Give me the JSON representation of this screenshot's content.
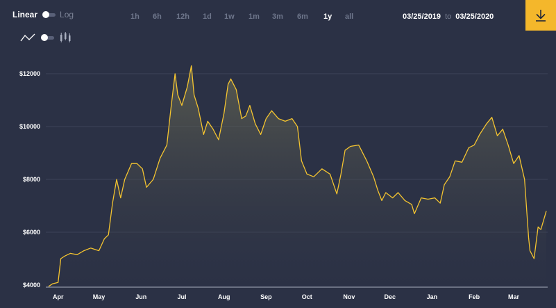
{
  "toolbar": {
    "scale_linear": "Linear",
    "scale_log": "Log",
    "ranges": [
      "1h",
      "6h",
      "12h",
      "1d",
      "1w",
      "1m",
      "3m",
      "6m",
      "1y",
      "all"
    ],
    "active_range": "1y",
    "date_from": "03/25/2019",
    "date_sep": "to",
    "date_to": "03/25/2020",
    "download_icon": "download-icon"
  },
  "chart_type_toggle": {
    "left_icon": "line-chart-icon",
    "right_icon": "candlestick-icon"
  },
  "colors": {
    "background": "#2b3145",
    "line": "#f4c430",
    "accent": "#f4b72b",
    "grid": "#3c4359"
  },
  "chart_data": {
    "type": "area",
    "ylim": [
      4000,
      12800
    ],
    "yticks": [
      "$4000",
      "$6000",
      "$8000",
      "$10000",
      "$12000"
    ],
    "ytick_values": [
      4000,
      6000,
      8000,
      10000,
      12000
    ],
    "xticks": [
      "Apr",
      "May",
      "Jun",
      "Jul",
      "Aug",
      "Sep",
      "Oct",
      "Nov",
      "Dec",
      "Jan",
      "Feb",
      "Mar"
    ],
    "x": [
      "2019-03-25",
      "2019-03-28",
      "2019-04-01",
      "2019-04-03",
      "2019-04-06",
      "2019-04-10",
      "2019-04-15",
      "2019-04-20",
      "2019-04-25",
      "2019-05-01",
      "2019-05-05",
      "2019-05-08",
      "2019-05-11",
      "2019-05-14",
      "2019-05-17",
      "2019-05-20",
      "2019-05-25",
      "2019-05-29",
      "2019-06-02",
      "2019-06-05",
      "2019-06-10",
      "2019-06-15",
      "2019-06-20",
      "2019-06-23",
      "2019-06-26",
      "2019-06-28",
      "2019-07-01",
      "2019-07-05",
      "2019-07-08",
      "2019-07-10",
      "2019-07-13",
      "2019-07-17",
      "2019-07-20",
      "2019-07-24",
      "2019-07-28",
      "2019-08-01",
      "2019-08-04",
      "2019-08-06",
      "2019-08-10",
      "2019-08-14",
      "2019-08-17",
      "2019-08-20",
      "2019-08-24",
      "2019-08-28",
      "2019-09-01",
      "2019-09-05",
      "2019-09-10",
      "2019-09-15",
      "2019-09-20",
      "2019-09-24",
      "2019-09-27",
      "2019-10-01",
      "2019-10-06",
      "2019-10-12",
      "2019-10-18",
      "2019-10-23",
      "2019-10-26",
      "2019-10-29",
      "2019-11-02",
      "2019-11-08",
      "2019-11-14",
      "2019-11-19",
      "2019-11-22",
      "2019-11-25",
      "2019-11-28",
      "2019-12-03",
      "2019-12-07",
      "2019-12-12",
      "2019-12-17",
      "2019-12-19",
      "2019-12-24",
      "2019-12-29",
      "2020-01-03",
      "2020-01-07",
      "2020-01-10",
      "2020-01-14",
      "2020-01-18",
      "2020-01-23",
      "2020-01-28",
      "2020-02-01",
      "2020-02-05",
      "2020-02-10",
      "2020-02-14",
      "2020-02-18",
      "2020-02-22",
      "2020-02-26",
      "2020-03-01",
      "2020-03-05",
      "2020-03-09",
      "2020-03-12",
      "2020-03-13",
      "2020-03-16",
      "2020-03-19",
      "2020-03-21",
      "2020-03-25"
    ],
    "series": [
      {
        "values": [
          3950,
          4050,
          4100,
          5000,
          5100,
          5200,
          5150,
          5300,
          5400,
          5300,
          5750,
          5900,
          7100,
          8000,
          7300,
          8000,
          8600,
          8600,
          8400,
          7700,
          8000,
          8800,
          9300,
          10700,
          12000,
          11200,
          10800,
          11500,
          12300,
          11200,
          10700,
          9700,
          10200,
          9900,
          9500,
          10500,
          11600,
          11800,
          11400,
          10300,
          10400,
          10800,
          10100,
          9700,
          10300,
          10600,
          10300,
          10200,
          10300,
          10000,
          8700,
          8200,
          8100,
          8400,
          8200,
          7450,
          8200,
          9100,
          9250,
          9300,
          8700,
          8100,
          7600,
          7200,
          7500,
          7300,
          7500,
          7200,
          7050,
          6700,
          7300,
          7250,
          7300,
          7100,
          7800,
          8100,
          8700,
          8650,
          9200,
          9300,
          9700,
          10100,
          10350,
          9650,
          9900,
          9300,
          8600,
          8900,
          8000,
          5800,
          5300,
          5000,
          6200,
          6100,
          6800
        ]
      }
    ]
  }
}
